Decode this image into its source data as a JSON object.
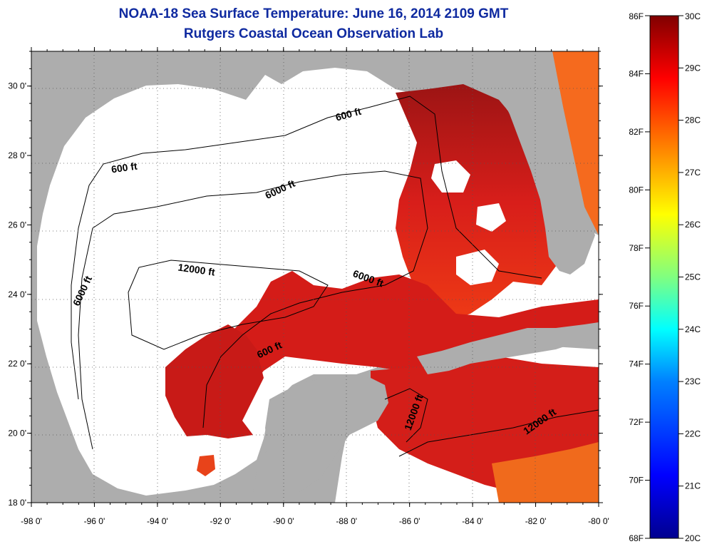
{
  "title": "NOAA-18 Sea Surface Temperature:  June 16, 2014 2109 GMT",
  "subtitle": "Rutgers Coastal Ocean Observation Lab",
  "map": {
    "lon_range": [
      -98,
      -80
    ],
    "lat_range": [
      18,
      31
    ],
    "lon_ticks": [
      "-98 0'",
      "-96 0'",
      "-94 0'",
      "-92 0'",
      "-90 0'",
      "-88 0'",
      "-86 0'",
      "-84 0'",
      "-82 0'",
      "-80 0'"
    ],
    "lat_ticks": [
      "18 0'",
      "20 0'",
      "22 0'",
      "24 0'",
      "26 0'",
      "28 0'",
      "30 0'"
    ],
    "contour_labels": [
      "600 ft",
      "600 ft",
      "600 ft",
      "6000 ft",
      "6000 ft",
      "6000 ft",
      "12000 ft",
      "12000 ft",
      "12000 ft"
    ],
    "colors": {
      "land": "#adadad",
      "clouds": "#ffffff",
      "warm_sst": "#e8231b",
      "hot_sst": "#a81313"
    }
  },
  "colorbar": {
    "fahrenheit_labels": [
      "86F",
      "84F",
      "82F",
      "80F",
      "78F",
      "76F",
      "74F",
      "72F",
      "70F",
      "68F"
    ],
    "celsius_labels": [
      "30C",
      "29C",
      "28C",
      "27C",
      "26C",
      "25C",
      "24C",
      "23C",
      "22C",
      "21C",
      "20C"
    ],
    "colors": [
      "#00008f",
      "#0000ff",
      "#0080ff",
      "#00ffff",
      "#80ff80",
      "#ffff00",
      "#ff8000",
      "#ff0000",
      "#800000"
    ]
  }
}
